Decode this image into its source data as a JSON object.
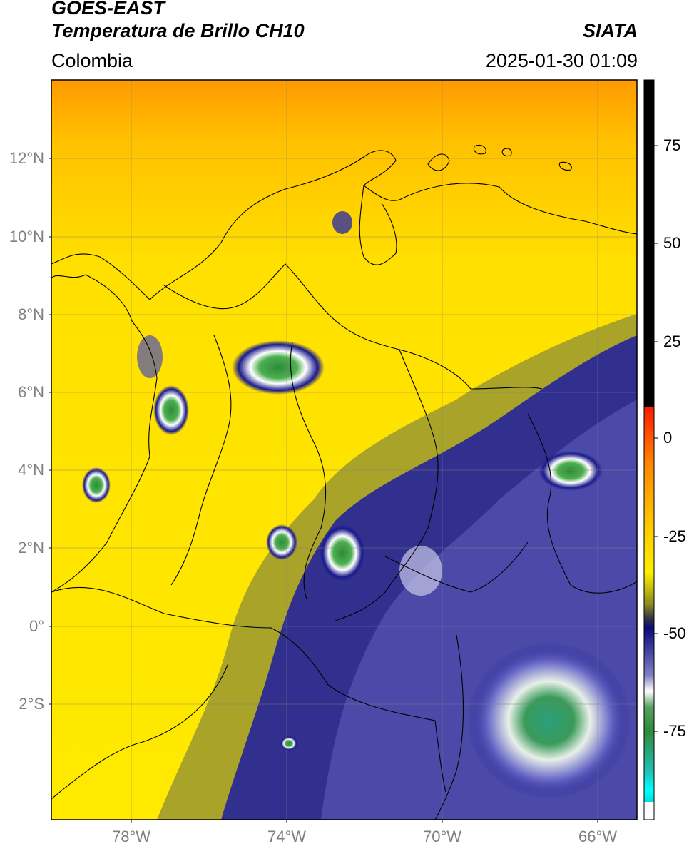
{
  "header": {
    "satellite": "GOES-EAST",
    "product": "Temperatura de Brillo CH10",
    "region": "Colombia",
    "org": "SIATA",
    "datetime": "2025-01-30 01:09"
  },
  "map": {
    "lat_labels": [
      "12°N",
      "10°N",
      "8°N",
      "6°N",
      "4°N",
      "2°N",
      "0°",
      "2°S"
    ],
    "lon_labels": [
      "78°W",
      "74°W",
      "70°W",
      "66°W"
    ]
  },
  "colorbar": {
    "tick_labels": [
      "75",
      "50",
      "25",
      "0",
      "-25",
      "-50",
      "-75"
    ],
    "colors": {
      "black": "#000000",
      "red": "#ff2a00",
      "orange": "#ffa500",
      "yellow": "#ffee00",
      "olive": "#8c8a1e",
      "navy": "#1a1a8c",
      "white": "#ffffff",
      "green": "#2e8b3a",
      "cyan": "#1ee0d0"
    }
  }
}
